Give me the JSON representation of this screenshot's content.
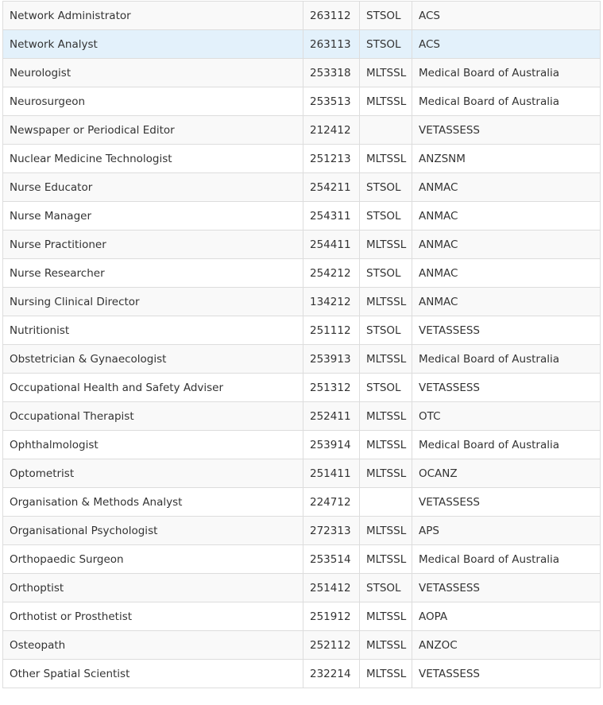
{
  "table": {
    "rows": [
      [
        "Network Administrator",
        "263112",
        "STSOL",
        "ACS"
      ],
      [
        "Network Analyst",
        "263113",
        "STSOL",
        "ACS"
      ],
      [
        "Neurologist",
        "253318",
        "MLTSSL",
        "Medical Board of Australia"
      ],
      [
        "Neurosurgeon",
        "253513",
        "MLTSSL",
        "Medical Board of Australia"
      ],
      [
        "Newspaper or Periodical Editor",
        "212412",
        null,
        "VETASSESS"
      ],
      [
        "Nuclear Medicine Technologist",
        "251213",
        "MLTSSL",
        "ANZSNM"
      ],
      [
        "Nurse Educator",
        "254211",
        "STSOL",
        "ANMAC"
      ],
      [
        "Nurse Manager",
        "254311",
        "STSOL",
        "ANMAC"
      ],
      [
        "Nurse Practitioner",
        "254411",
        "MLTSSL",
        "ANMAC"
      ],
      [
        "Nurse Researcher",
        "254212",
        "STSOL",
        "ANMAC"
      ],
      [
        "Nursing Clinical Director",
        "134212",
        "MLTSSL",
        "ANMAC"
      ],
      [
        "Nutritionist",
        "251112",
        "STSOL",
        "VETASSESS"
      ],
      [
        "Obstetrician & Gynaecologist",
        "253913",
        "MLTSSL",
        "Medical Board of Australia"
      ],
      [
        "Occupational Health and Safety Adviser",
        "251312",
        "STSOL",
        "VETASSESS"
      ],
      [
        "Occupational Therapist",
        "252411",
        "MLTSSL",
        "OTC"
      ],
      [
        "Ophthalmologist",
        "253914",
        "MLTSSL",
        "Medical Board of Australia"
      ],
      [
        "Optometrist",
        "251411",
        "MLTSSL",
        "OCANZ"
      ],
      [
        "Organisation & Methods Analyst",
        "224712",
        null,
        "VETASSESS"
      ],
      [
        "Organisational Psychologist",
        "272313",
        "MLTSSL",
        "APS"
      ],
      [
        "Orthopaedic Surgeon",
        "253514",
        "MLTSSL",
        "Medical Board of Australia"
      ],
      [
        "Orthoptist",
        "251412",
        "STSOL",
        "VETASSESS"
      ],
      [
        "Orthotist or Prosthetist",
        "251912",
        "MLTSSL",
        "AOPA"
      ],
      [
        "Osteopath",
        "252112",
        "MLTSSL",
        "ANZOC"
      ],
      [
        "Other Spatial Scientist",
        "232214",
        "MLTSSL",
        "VETASSESS"
      ]
    ]
  }
}
